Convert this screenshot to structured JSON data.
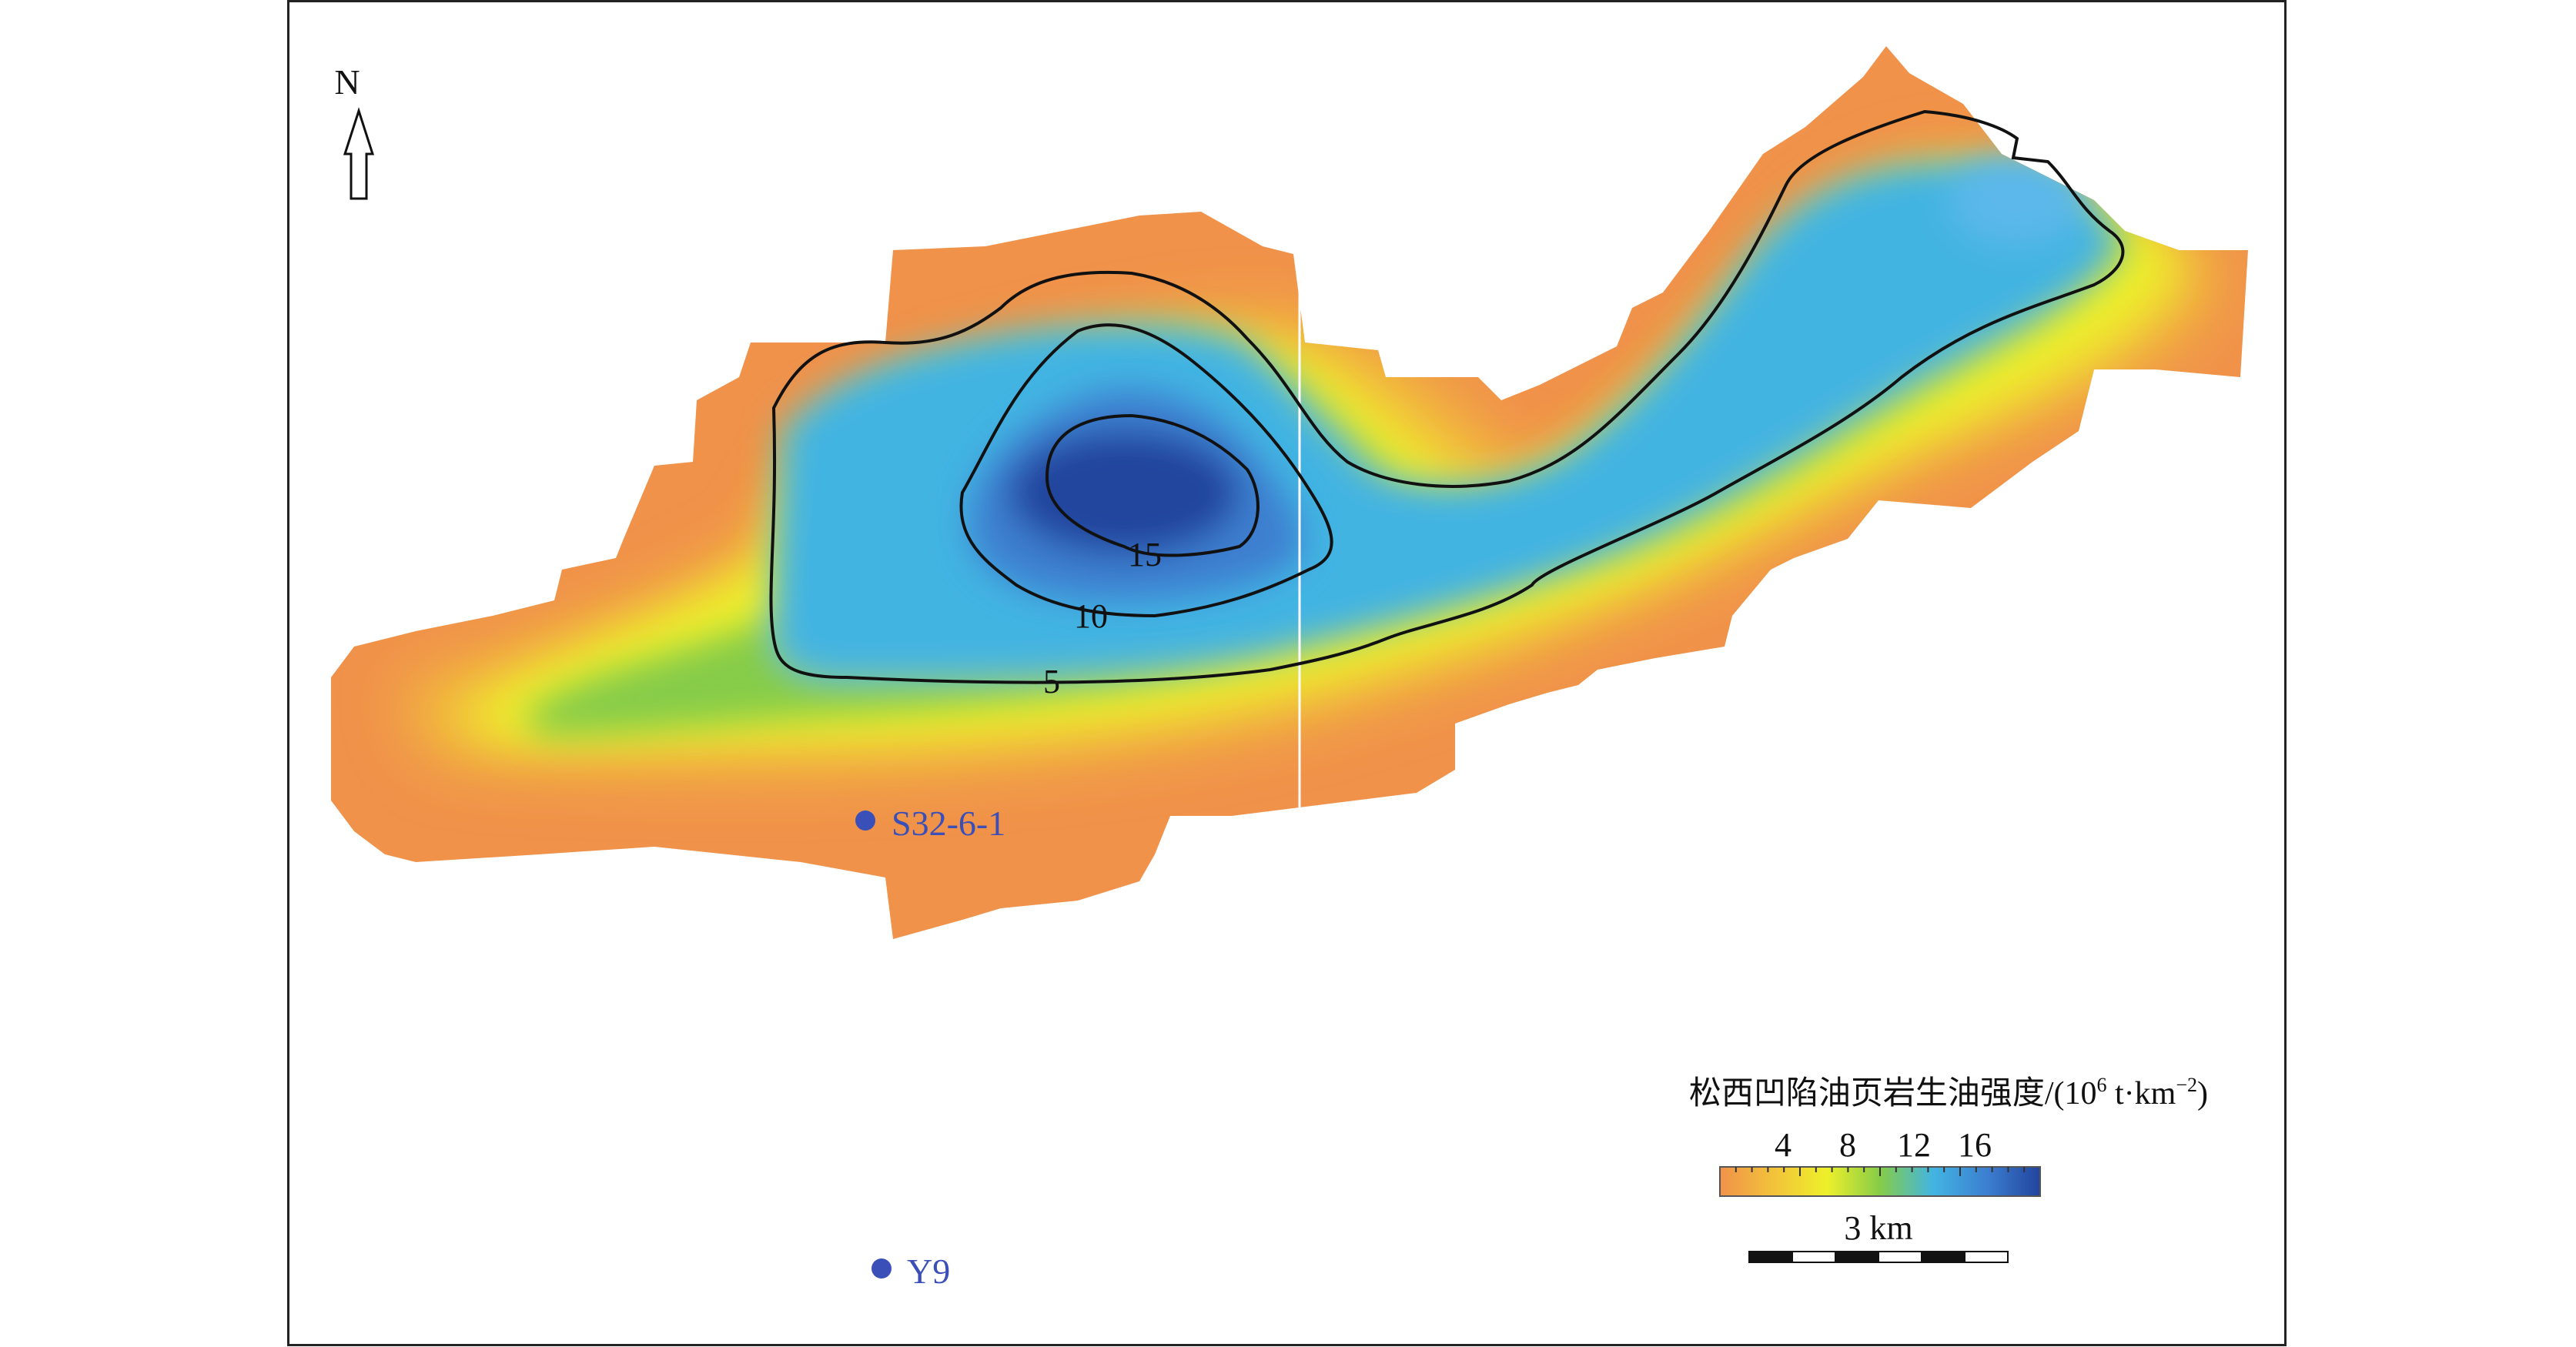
{
  "north": {
    "label": "N",
    "icon": "north-arrow-icon"
  },
  "contours": [
    {
      "value": "5"
    },
    {
      "value": "10"
    },
    {
      "value": "15"
    }
  ],
  "wells": [
    {
      "name": "S32-6-1",
      "color": "#3a4fb8"
    },
    {
      "name": "Y9",
      "color": "#3a4fb8"
    }
  ],
  "legend": {
    "title_main": "松西凹陷油页岩生油强度/(10",
    "title_sup": "6",
    "title_unit": " t·km",
    "title_unit_sup": "−2",
    "title_close": ")",
    "ticks": [
      "4",
      "8",
      "12",
      "16"
    ],
    "colors": [
      "#f0924a",
      "#f2c23a",
      "#eef02a",
      "#86cc48",
      "#42b4e2",
      "#3c7fd0",
      "#22449e"
    ]
  },
  "scale_bar": {
    "label": "3 km"
  }
}
